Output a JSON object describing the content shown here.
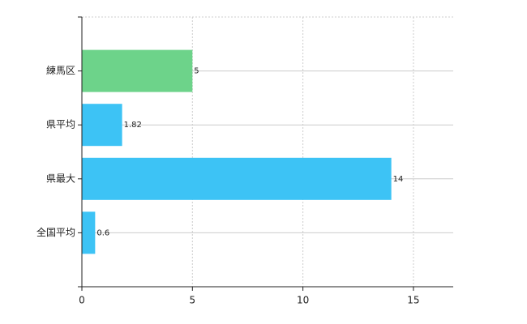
{
  "chart_data": {
    "type": "bar",
    "orientation": "horizontal",
    "categories": [
      "練馬区",
      "県平均",
      "県最大",
      "全国平均"
    ],
    "values": [
      5,
      1.82,
      14,
      0.6
    ],
    "colors": [
      "#6dd38a",
      "#3dc3f5",
      "#3dc3f5",
      "#3dc3f5"
    ],
    "xlim": [
      0,
      16.8
    ],
    "xticks": [
      0,
      5,
      10,
      15
    ],
    "grid": true
  }
}
